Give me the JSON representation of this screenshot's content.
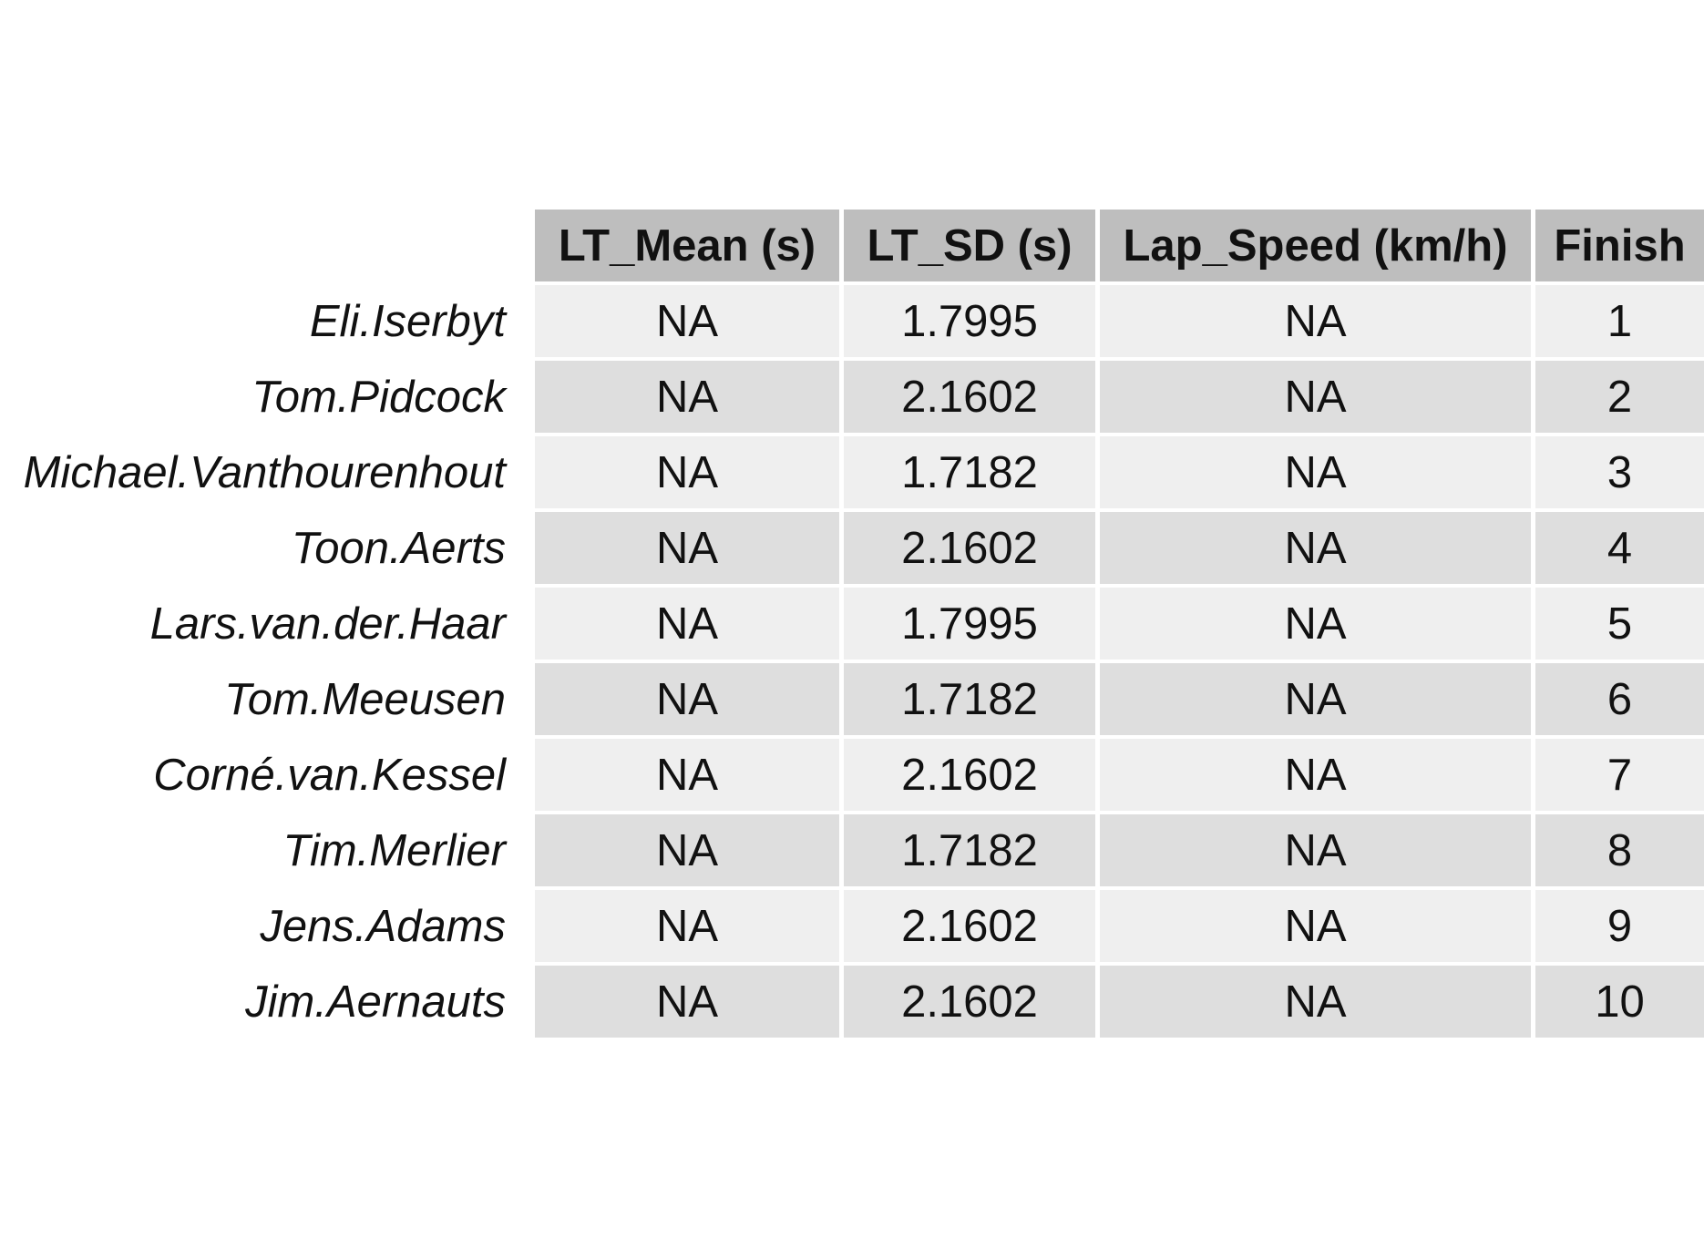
{
  "chart_data": {
    "type": "table",
    "columns": [
      "LT_Mean (s)",
      "LT_SD (s)",
      "Lap_Speed (km/h)",
      "Finish"
    ],
    "rows": [
      {
        "name": "Eli.Iserbyt",
        "values": [
          "NA",
          "1.7995",
          "NA",
          "1"
        ]
      },
      {
        "name": "Tom.Pidcock",
        "values": [
          "NA",
          "2.1602",
          "NA",
          "2"
        ]
      },
      {
        "name": "Michael.Vanthourenhout",
        "values": [
          "NA",
          "1.7182",
          "NA",
          "3"
        ]
      },
      {
        "name": "Toon.Aerts",
        "values": [
          "NA",
          "2.1602",
          "NA",
          "4"
        ]
      },
      {
        "name": "Lars.van.der.Haar",
        "values": [
          "NA",
          "1.7995",
          "NA",
          "5"
        ]
      },
      {
        "name": "Tom.Meeusen",
        "values": [
          "NA",
          "1.7182",
          "NA",
          "6"
        ]
      },
      {
        "name": "Corné.van.Kessel",
        "values": [
          "NA",
          "2.1602",
          "NA",
          "7"
        ]
      },
      {
        "name": "Tim.Merlier",
        "values": [
          "NA",
          "1.7182",
          "NA",
          "8"
        ]
      },
      {
        "name": "Jens.Adams",
        "values": [
          "NA",
          "2.1602",
          "NA",
          "9"
        ]
      },
      {
        "name": "Jim.Aernauts",
        "values": [
          "NA",
          "2.1602",
          "NA",
          "10"
        ]
      }
    ]
  },
  "colors": {
    "header_background": "#bebebe",
    "row_light": "#efefef",
    "row_dark": "#dedede",
    "grid_lines": "#ffffff"
  }
}
